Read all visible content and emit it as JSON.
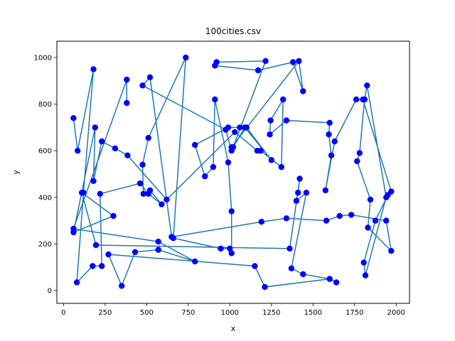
{
  "chart_data": {
    "type": "line",
    "title": "100cities.csv",
    "xlabel": "x",
    "ylabel": "y",
    "xlim": [
      -40,
      2080
    ],
    "ylim": [
      -55,
      1070
    ],
    "xticks": [
      0,
      250,
      500,
      750,
      1000,
      1250,
      1500,
      1750,
      2000
    ],
    "yticks": [
      0,
      200,
      400,
      600,
      800,
      1000
    ],
    "line_color": "#1f77b4",
    "marker_color": "#0000ff",
    "grid": false,
    "legend": "none",
    "route": [
      [
        60,
        740
      ],
      [
        85,
        600
      ],
      [
        180,
        950
      ],
      [
        120,
        420
      ],
      [
        80,
        35
      ],
      [
        175,
        105
      ],
      [
        230,
        105
      ],
      [
        220,
        415
      ],
      [
        460,
        460
      ],
      [
        510,
        415
      ],
      [
        590,
        370
      ],
      [
        520,
        430
      ],
      [
        480,
        415
      ],
      [
        475,
        540
      ],
      [
        510,
        655
      ],
      [
        735,
        1000
      ],
      [
        660,
        225
      ],
      [
        945,
        180
      ],
      [
        1000,
        180
      ],
      [
        1010,
        160
      ],
      [
        1010,
        340
      ],
      [
        990,
        550
      ],
      [
        910,
        820
      ],
      [
        900,
        530
      ],
      [
        850,
        490
      ],
      [
        790,
        625
      ],
      [
        990,
        700
      ],
      [
        1060,
        700
      ],
      [
        1100,
        700
      ],
      [
        1250,
        560
      ],
      [
        1090,
        700
      ],
      [
        1020,
        615
      ],
      [
        1215,
        985
      ],
      [
        920,
        980
      ],
      [
        910,
        965
      ],
      [
        1170,
        945
      ],
      [
        1380,
        980
      ],
      [
        1440,
        855
      ],
      [
        1415,
        985
      ],
      [
        1010,
        615
      ],
      [
        1010,
        600
      ],
      [
        975,
        690
      ],
      [
        475,
        880
      ],
      [
        520,
        915
      ],
      [
        650,
        230
      ],
      [
        1190,
        295
      ],
      [
        1340,
        310
      ],
      [
        1580,
        300
      ],
      [
        1660,
        320
      ],
      [
        1730,
        325
      ],
      [
        1940,
        300
      ],
      [
        1970,
        170
      ],
      [
        1830,
        270
      ],
      [
        1845,
        390
      ],
      [
        1765,
        555
      ],
      [
        1780,
        590
      ],
      [
        1810,
        820
      ],
      [
        1825,
        880
      ],
      [
        1940,
        400
      ],
      [
        1815,
        65
      ],
      [
        1805,
        120
      ],
      [
        1875,
        300
      ],
      [
        1950,
        410
      ],
      [
        1970,
        425
      ],
      [
        1800,
        820
      ],
      [
        1760,
        820
      ],
      [
        1630,
        640
      ],
      [
        1575,
        430
      ],
      [
        1610,
        580
      ],
      [
        1595,
        670
      ],
      [
        1600,
        720
      ],
      [
        1340,
        730
      ],
      [
        1240,
        670
      ],
      [
        1245,
        730
      ],
      [
        1320,
        820
      ],
      [
        1310,
        530
      ],
      [
        1185,
        600
      ],
      [
        1165,
        600
      ],
      [
        1030,
        680
      ],
      [
        620,
        390
      ],
      [
        385,
        580
      ],
      [
        310,
        610
      ],
      [
        230,
        640
      ],
      [
        180,
        470
      ],
      [
        190,
        700
      ],
      [
        60,
        250
      ],
      [
        300,
        320
      ],
      [
        110,
        420
      ],
      [
        195,
        195
      ],
      [
        1360,
        180
      ],
      [
        1420,
        480
      ],
      [
        1410,
        420
      ],
      [
        1400,
        385
      ],
      [
        1460,
        420
      ],
      [
        1370,
        95
      ],
      [
        1440,
        70
      ],
      [
        1600,
        50
      ],
      [
        1640,
        35
      ],
      [
        1600,
        50
      ],
      [
        1210,
        15
      ],
      [
        1150,
        105
      ],
      [
        270,
        155
      ],
      [
        350,
        20
      ],
      [
        430,
        165
      ],
      [
        570,
        175
      ],
      [
        790,
        125
      ],
      [
        570,
        210
      ],
      [
        60,
        265
      ],
      [
        380,
        905
      ],
      [
        380,
        805
      ]
    ]
  }
}
